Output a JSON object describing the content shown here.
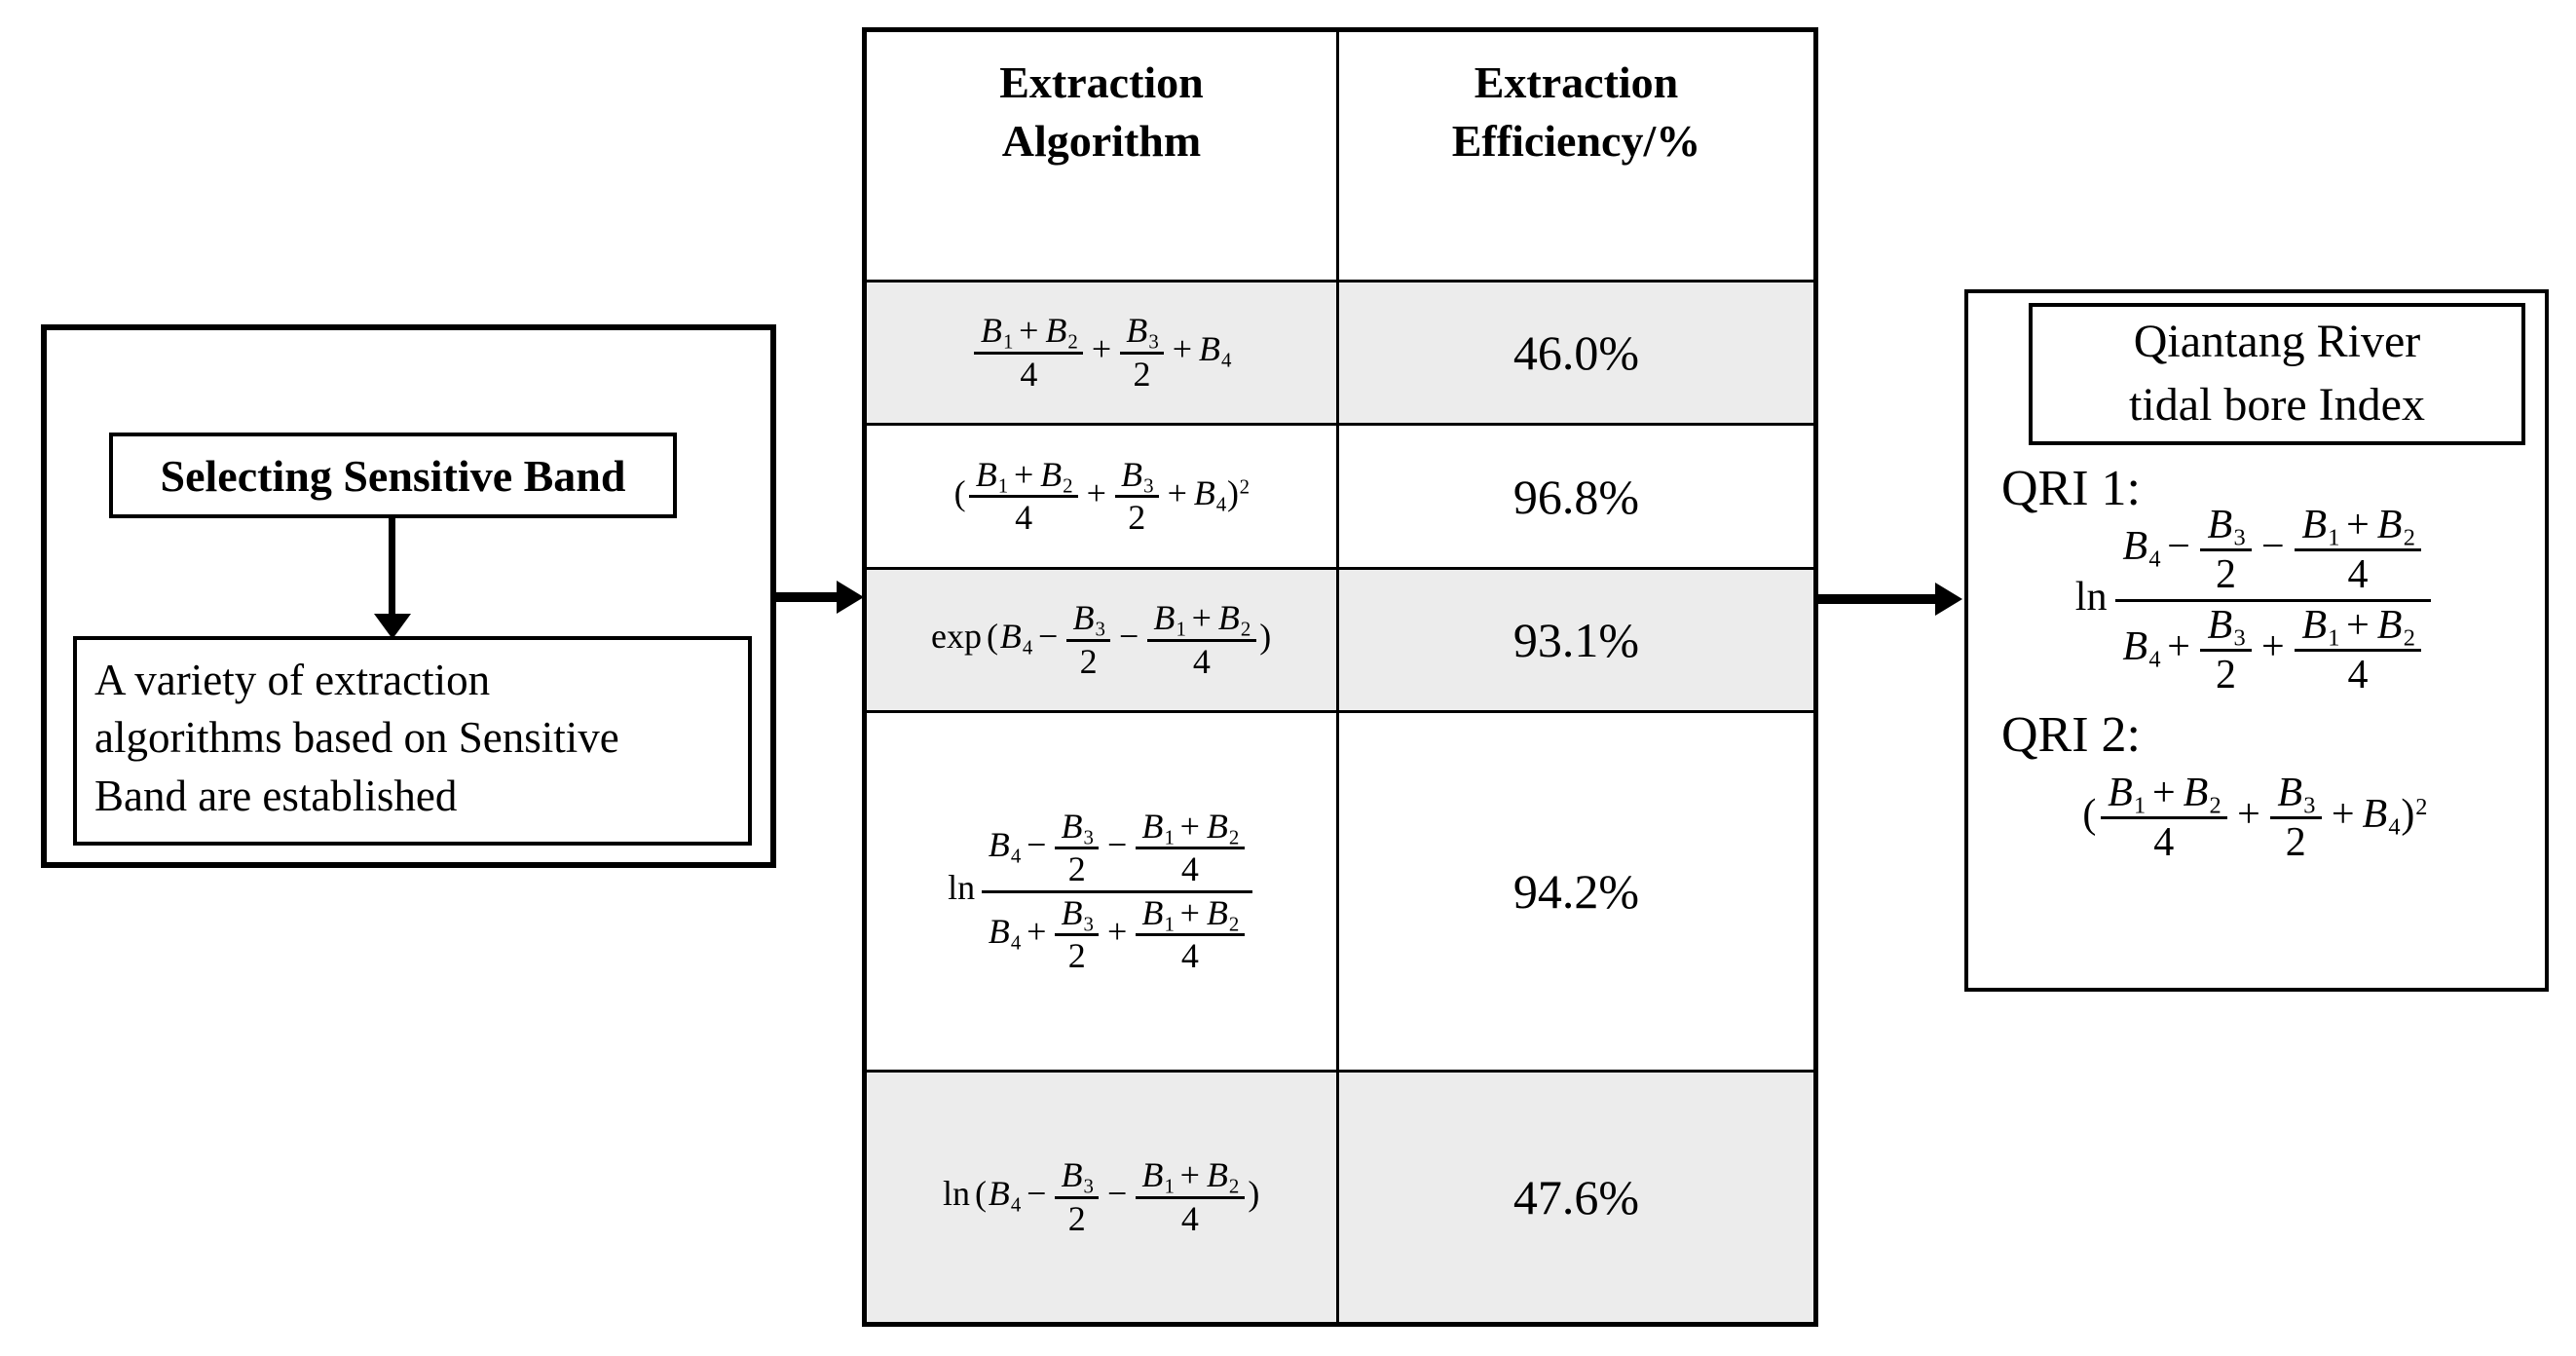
{
  "colors": {
    "border": "#000000",
    "background": "#ffffff",
    "row_shade": "#ececec"
  },
  "left_panel": {
    "step1": "Selecting Sensitive Band",
    "step2": "A variety of extraction\nalgorithms based on Sensitive\nBand are established"
  },
  "table": {
    "headers": [
      "Extraction\nAlgorithm",
      "Extraction\nEfficiency/%"
    ],
    "rows": [
      {
        "formula": "\\frac{B_1+B_2}{4}+\\frac{B_3}{2}+B_4",
        "efficiency": "46.0%"
      },
      {
        "formula": "(\\frac{B_1+B_2}{4}+\\frac{B_3}{2}+B_4)^2",
        "efficiency": "96.8%"
      },
      {
        "formula": "exp(B_4-\\frac{B_3}{2}-\\frac{B_1+B_2}{4})",
        "efficiency": "93.1%"
      },
      {
        "formula": "ln\\frac{B_4-\\frac{B_3}{2}-\\frac{B_1+B_2}{4}}{B_4+\\frac{B_3}{2}+\\frac{B_1+B_2}{4}}",
        "efficiency": "94.2%"
      },
      {
        "formula": "ln(B_4-\\frac{B_3}{2}-\\frac{B_1+B_2}{4})",
        "efficiency": "47.6%"
      }
    ]
  },
  "right_panel": {
    "title": "Qiantang River\ntidal bore Index",
    "items": [
      {
        "label": "QRI 1:",
        "formula": "ln\\frac{B_4-\\frac{B_3}{2}-\\frac{B_1+B_2}{4}}{B_4+\\frac{B_3}{2}+\\frac{B_1+B_2}{4}}"
      },
      {
        "label": "QRI 2:",
        "formula": "(\\frac{B_1+B_2}{4}+\\frac{B_3}{2}+B_4)^2"
      }
    ]
  }
}
